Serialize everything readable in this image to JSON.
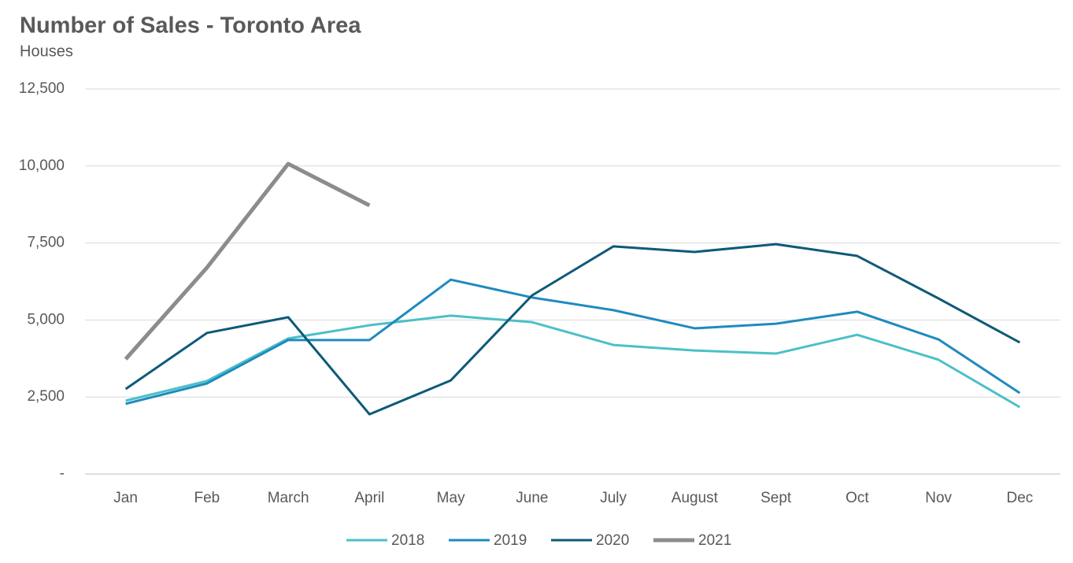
{
  "chart_data": {
    "type": "line",
    "title": "Number of Sales - Toronto Area",
    "subtitle": "Houses",
    "categories": [
      "Jan",
      "Feb",
      "March",
      "April",
      "May",
      "June",
      "July",
      "August",
      "Sept",
      "Oct",
      "Nov",
      "Dec"
    ],
    "series": [
      {
        "name": "2018",
        "color": "#4bc0c8",
        "values": [
          2380,
          3020,
          4400,
          4830,
          5140,
          4930,
          4190,
          4010,
          3910,
          4520,
          3710,
          2170
        ]
      },
      {
        "name": "2019",
        "color": "#1f8ac0",
        "values": [
          2280,
          2940,
          4350,
          4350,
          6310,
          5730,
          5320,
          4730,
          4880,
          5270,
          4370,
          2630
        ]
      },
      {
        "name": "2020",
        "color": "#0e5a78",
        "values": [
          2760,
          4580,
          5090,
          1940,
          3040,
          5800,
          7390,
          7210,
          7460,
          7080,
          5700,
          4270
        ]
      },
      {
        "name": "2021",
        "color": "#8c8c8c",
        "values": [
          3730,
          6700,
          10070,
          8720,
          null,
          null,
          null,
          null,
          null,
          null,
          null,
          null
        ]
      }
    ],
    "ylim": [
      0,
      12500
    ],
    "yticks": [
      {
        "value": 0,
        "label": "-"
      },
      {
        "value": 2500,
        "label": "2,500"
      },
      {
        "value": 5000,
        "label": "5,000"
      },
      {
        "value": 7500,
        "label": "7,500"
      },
      {
        "value": 10000,
        "label": "10,000"
      },
      {
        "value": 12500,
        "label": "12,500"
      }
    ],
    "grid": true,
    "legend": "bottom"
  }
}
